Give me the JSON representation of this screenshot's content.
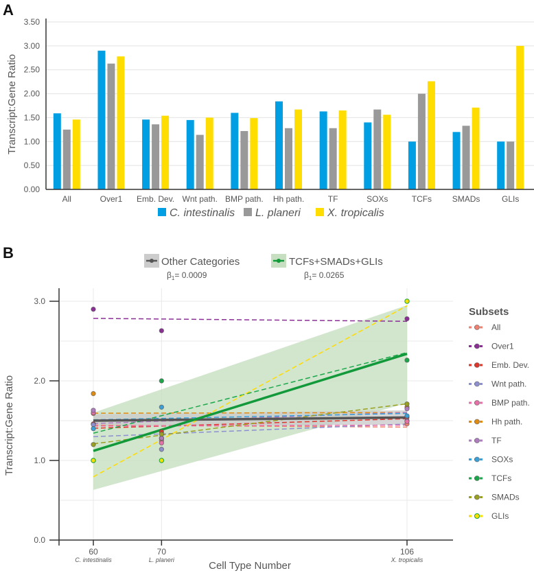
{
  "chart_data": [
    {
      "panel": "A",
      "type": "bar",
      "title": "",
      "xlabel": "",
      "ylabel": "Transcript:Gene Ratio",
      "ylim": [
        0,
        3.5
      ],
      "yticks": [
        "0.00",
        "0.50",
        "1.00",
        "1.50",
        "2.00",
        "2.50",
        "3.00",
        "3.50"
      ],
      "grid": true,
      "legend_position": "bottom",
      "categories": [
        "All",
        "Over1",
        "Emb. Dev.",
        "Wnt path.",
        "BMP path.",
        "Hh path.",
        "TF",
        "SOXs",
        "TCFs",
        "SMADs",
        "GLIs"
      ],
      "series": [
        {
          "name": "C. intestinalis",
          "color": "#009fe3",
          "values": [
            1.59,
            2.9,
            1.46,
            1.45,
            1.6,
            1.84,
            1.63,
            1.4,
            1.0,
            1.2,
            1.0
          ]
        },
        {
          "name": "L. planeri",
          "color": "#999999",
          "values": [
            1.25,
            2.63,
            1.36,
            1.14,
            1.22,
            1.28,
            1.28,
            1.67,
            2.0,
            1.33,
            1.0
          ]
        },
        {
          "name": "X. tropicalis",
          "color": "#ffdd00",
          "values": [
            1.46,
            2.78,
            1.54,
            1.5,
            1.49,
            1.67,
            1.65,
            1.56,
            2.26,
            1.71,
            3.0
          ]
        }
      ]
    },
    {
      "panel": "B",
      "type": "scatter",
      "title": "",
      "xlabel": "Cell Type Number",
      "ylabel": "Transcript:Gene Ratio",
      "ylim": [
        0,
        3.0
      ],
      "xlim": [
        55,
        115
      ],
      "yticks": [
        "0.0",
        "1.0",
        "2.0",
        "3.0"
      ],
      "x": [
        60,
        70,
        106
      ],
      "xtick_labels": [
        "60",
        "70",
        "106"
      ],
      "xtick_sublabels": [
        "C. intestinalis",
        "L. planeri",
        "X. tropicalis"
      ],
      "grid": true,
      "legend_title": "Subsets",
      "legend_position": "right",
      "series": [
        {
          "name": "All",
          "color": "#f08070",
          "values": [
            1.59,
            1.25,
            1.46
          ]
        },
        {
          "name": "Over1",
          "color": "#8b2f97",
          "values": [
            2.9,
            2.63,
            2.78
          ]
        },
        {
          "name": "Emb. Dev.",
          "color": "#e0352b",
          "values": [
            1.46,
            1.36,
            1.54
          ]
        },
        {
          "name": "Wnt path.",
          "color": "#8d8fd0",
          "values": [
            1.45,
            1.14,
            1.5
          ]
        },
        {
          "name": "BMP path.",
          "color": "#e870a8",
          "values": [
            1.6,
            1.22,
            1.49
          ]
        },
        {
          "name": "Hh path.",
          "color": "#e08a10",
          "values": [
            1.84,
            1.28,
            1.67
          ]
        },
        {
          "name": "TF",
          "color": "#b07cc0",
          "values": [
            1.63,
            1.28,
            1.65
          ]
        },
        {
          "name": "SOXs",
          "color": "#3aa0d8",
          "values": [
            1.4,
            1.67,
            1.56
          ]
        },
        {
          "name": "TCFs",
          "color": "#1aa84a",
          "values": [
            1.0,
            2.0,
            2.26
          ]
        },
        {
          "name": "SMADs",
          "color": "#9aa020",
          "values": [
            1.2,
            1.33,
            1.71
          ]
        },
        {
          "name": "GLIs",
          "color": "#ffdd00",
          "values": [
            1.0,
            1.0,
            3.0
          ]
        }
      ],
      "regressions": [
        {
          "name": "Other Categories",
          "color": "#555555",
          "band_color": "#cccccc",
          "beta_label": "β",
          "beta_sub": "1",
          "beta_value": "= 0.0009",
          "line": [
            1.5,
            1.54
          ],
          "band_low": [
            1.43,
            1.45
          ],
          "band_high": [
            1.58,
            1.63
          ]
        },
        {
          "name": "TCFs+SMADs+GLIs",
          "color": "#11993a",
          "band_color": "#c7dfc0",
          "beta_label": "β",
          "beta_sub": "1",
          "beta_value": "= 0.0265",
          "line": [
            1.12,
            2.34
          ],
          "band_low": [
            0.63,
            1.72
          ],
          "band_high": [
            1.6,
            2.95
          ]
        }
      ]
    }
  ],
  "labels": {
    "panel_a": "A",
    "panel_b": "B"
  }
}
